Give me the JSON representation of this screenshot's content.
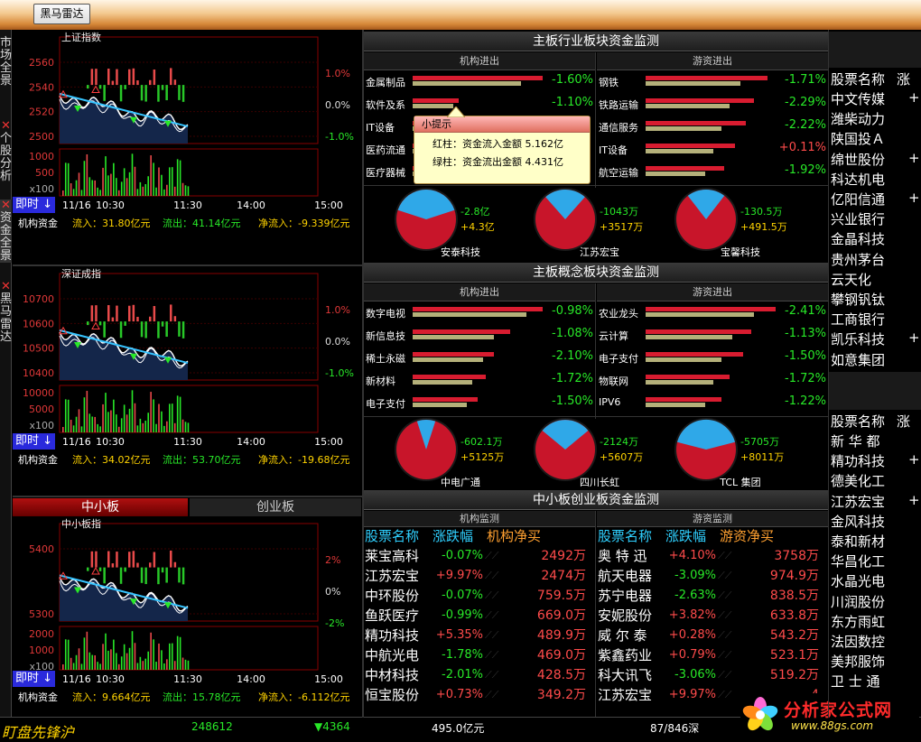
{
  "toolbar": {
    "radar_button": "黑马雷达"
  },
  "side_tabs": [
    "市场全景",
    "个股分析",
    "资金全景",
    "黑马雷达"
  ],
  "index_panels": [
    {
      "title": "上证指数",
      "y_ticks": [
        "2560",
        "2540",
        "2520",
        "2500"
      ],
      "pct_ticks": [
        "1.0%",
        "0.0%",
        "-1.0%"
      ],
      "vol_ticks": [
        "1000",
        "500",
        "x100"
      ],
      "time_mode": "即时",
      "time_ticks": [
        "11/16",
        "10:30",
        "11:30",
        "14:00",
        "15:00"
      ],
      "flow_label": "机构资金",
      "inflow": "流入：31.80亿元",
      "outflow": "流出：41.14亿元",
      "net": "净流入：-9.339亿元"
    },
    {
      "title": "深证成指",
      "y_ticks": [
        "10700",
        "10600",
        "10500",
        "10400"
      ],
      "pct_ticks": [
        "1.0%",
        "0.0%",
        "-1.0%"
      ],
      "vol_ticks": [
        "10000",
        "5000",
        "x100"
      ],
      "time_mode": "即时",
      "time_ticks": [
        "11/16",
        "10:30",
        "11:30",
        "14:00",
        "15:00"
      ],
      "flow_label": "机构资金",
      "inflow": "流入：34.02亿元",
      "outflow": "流出：53.70亿元",
      "net": "净流入：-19.68亿元"
    },
    {
      "title": "中小板指",
      "y_ticks": [
        "5400",
        "5300"
      ],
      "pct_ticks": [
        "2%",
        "0%",
        "-2%"
      ],
      "vol_ticks": [
        "2000",
        "1000",
        "x100"
      ],
      "time_mode": "即时",
      "time_ticks": [
        "11/16",
        "10:30",
        "11:30",
        "14:00",
        "15:00"
      ],
      "flow_label": "机构资金",
      "inflow": "流入：9.664亿元",
      "outflow": "流出：15.78亿元",
      "net": "净流入：-6.112亿元"
    }
  ],
  "board_tabs": {
    "left": "中小板",
    "right": "创业板"
  },
  "industry": {
    "header": "主板行业板块资金监测",
    "inst_label": "机构进出",
    "retail_label": "游资进出",
    "inst": [
      {
        "name": "金属制品",
        "pct": "-1.60%",
        "r": 0.96,
        "g": 0.8
      },
      {
        "name": "软件及系",
        "pct": "-1.10%",
        "r": 0.34,
        "g": 0.3
      },
      {
        "name": "IT设备",
        "pct": "",
        "r": 0.28,
        "g": 0.24
      },
      {
        "name": "医药流通",
        "pct": "",
        "r": 0.3,
        "g": 0.22
      },
      {
        "name": "医疗器械",
        "pct": "",
        "r": 0.28,
        "g": 0.2
      }
    ],
    "retail": [
      {
        "name": "钢铁",
        "pct": "-1.71%",
        "r": 0.9,
        "g": 0.7
      },
      {
        "name": "铁路运输",
        "pct": "-2.29%",
        "r": 0.8,
        "g": 0.62
      },
      {
        "name": "通信服务",
        "pct": "-2.22%",
        "r": 0.74,
        "g": 0.56
      },
      {
        "name": "IT设备",
        "pct": "+0.11%",
        "r": 0.66,
        "g": 0.5
      },
      {
        "name": "航空运输",
        "pct": "-1.92%",
        "r": 0.58,
        "g": 0.44
      }
    ],
    "tooltip": {
      "title": "小提示",
      "line1": "红柱：资金流入金额 5.162亿",
      "line2": "绿柱：资金流出金额 4.431亿"
    },
    "pies": [
      {
        "name": "安泰科技",
        "out": "-2.8亿",
        "in": "+4.3亿",
        "blue": 0.4
      },
      {
        "name": "江苏宏宝",
        "out": "-1043万",
        "in": "+3517万",
        "blue": 0.23
      },
      {
        "name": "宝馨科技",
        "out": "-130.5万",
        "in": "+491.5万",
        "blue": 0.21
      }
    ]
  },
  "concept": {
    "header": "主板概念板块资金监测",
    "inst_label": "机构进出",
    "retail_label": "游资进出",
    "inst": [
      {
        "name": "数字电视",
        "pct": "-0.98%",
        "r": 0.96,
        "g": 0.84
      },
      {
        "name": "新信息技",
        "pct": "-1.08%",
        "r": 0.72,
        "g": 0.6
      },
      {
        "name": "稀土永磁",
        "pct": "-2.10%",
        "r": 0.6,
        "g": 0.52
      },
      {
        "name": "新材料",
        "pct": "-1.72%",
        "r": 0.54,
        "g": 0.44
      },
      {
        "name": "电子支付",
        "pct": "-1.50%",
        "r": 0.48,
        "g": 0.4
      }
    ],
    "retail": [
      {
        "name": "农业龙头",
        "pct": "-2.41%",
        "r": 0.96,
        "g": 0.8
      },
      {
        "name": "云计算",
        "pct": "-1.13%",
        "r": 0.78,
        "g": 0.64
      },
      {
        "name": "电子支付",
        "pct": "-1.50%",
        "r": 0.72,
        "g": 0.56
      },
      {
        "name": "物联网",
        "pct": "-1.72%",
        "r": 0.62,
        "g": 0.5
      },
      {
        "name": "IPV6",
        "pct": "-1.22%",
        "r": 0.56,
        "g": 0.44
      }
    ],
    "pies": [
      {
        "name": "中电广通",
        "out": "-602.1万",
        "in": "+5125万",
        "blue": 0.1
      },
      {
        "name": "四川长虹",
        "out": "-2124万",
        "in": "+5607万",
        "blue": 0.28
      },
      {
        "name": "TCL 集团",
        "out": "-5705万",
        "in": "+8011万",
        "blue": 0.42
      }
    ]
  },
  "sme": {
    "header": "中小板创业板资金监测",
    "inst_label": "机构监测",
    "retail_label": "游资监测",
    "cols": [
      "股票名称",
      "涨跌幅",
      "机构净买"
    ],
    "cols_r": [
      "股票名称",
      "涨跌幅",
      "游资净买"
    ],
    "inst": [
      [
        "莱宝高科",
        "-0.07%",
        "2492万"
      ],
      [
        "江苏宏宝",
        "+9.97%",
        "2474万"
      ],
      [
        "中环股份",
        "-0.07%",
        "759.5万"
      ],
      [
        "鱼跃医疗",
        "-0.99%",
        "669.0万"
      ],
      [
        "精功科技",
        "+5.35%",
        "489.9万"
      ],
      [
        "中航光电",
        "-1.78%",
        "469.0万"
      ],
      [
        "中材科技",
        "-2.01%",
        "428.5万"
      ],
      [
        "恒宝股份",
        "+0.73%",
        "349.2万"
      ]
    ],
    "retail": [
      [
        "奥 特 迅",
        "+4.10%",
        "3758万"
      ],
      [
        "航天电器",
        "-3.09%",
        "974.9万"
      ],
      [
        "苏宁电器",
        "-2.63%",
        "838.5万"
      ],
      [
        "安妮股份",
        "+3.82%",
        "633.8万"
      ],
      [
        "威 尔 泰",
        "+0.28%",
        "543.2万"
      ],
      [
        "紫鑫药业",
        "+0.79%",
        "523.1万"
      ],
      [
        "科大讯飞",
        "-3.06%",
        "519.2万"
      ],
      [
        "江苏宏宝",
        "+9.97%",
        "4"
      ]
    ]
  },
  "right_list": {
    "header": "股票名称",
    "header2": "涨",
    "list1": [
      "中文传媒",
      "潍柴动力",
      "陕国投Ａ",
      "绵世股份",
      "科达机电",
      "亿阳信通",
      "兴业银行",
      "金晶科技",
      "贵州茅台",
      " 云天化",
      "攀钢钒钛",
      "工商银行",
      "凯乐科技",
      "如意集团"
    ],
    "list1_marks": [
      "+",
      "",
      "",
      "+",
      "",
      "+",
      "",
      "",
      "",
      "",
      "",
      "",
      "+",
      ""
    ],
    "header_b": "股票名称",
    "header2_b": "涨",
    "list2": [
      "新 华 都",
      "精功科技",
      "德美化工",
      "江苏宏宝",
      "金风科技",
      "泰和新材",
      "华昌化工",
      "水晶光电",
      "川润股份",
      "东方雨虹",
      "法因数控",
      "美邦服饰",
      "卫 士 通"
    ],
    "list2_marks": [
      "",
      "+",
      "",
      "+",
      "",
      "",
      "",
      "",
      "",
      "",
      "",
      "",
      ""
    ]
  },
  "footer": {
    "ticker": "盯盘先锋沪",
    "volume": "248612",
    "change": "▼4364",
    "amount": "495.0亿元",
    "ratio": "87/846深"
  },
  "watermark": {
    "name": "分析家公式网",
    "url": "www.88gs.com"
  },
  "colors": {
    "red": "#d81c30",
    "khaki": "#b4b07a",
    "blue": "#2fa8e8",
    "pie_red": "#c8152a"
  }
}
